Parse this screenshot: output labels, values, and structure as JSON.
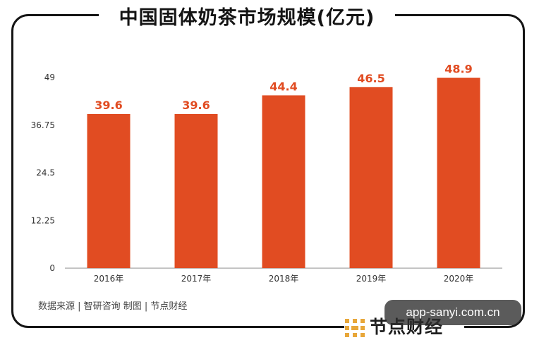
{
  "chart_data": {
    "type": "bar",
    "title": "中国固体奶茶市场规模(亿元)",
    "categories": [
      "2016年",
      "2017年",
      "2018年",
      "2019年",
      "2020年"
    ],
    "values": [
      39.6,
      39.6,
      44.4,
      46.5,
      48.9
    ],
    "ylim": [
      0,
      49
    ],
    "yticks": [
      0,
      12.25,
      24.5,
      36.75,
      49
    ],
    "bar_color": "#e14c22",
    "label_color": "#e14c22",
    "grid": false,
    "legend": "none"
  },
  "source": "数据来源 | 智研咨询    制图 | 节点财经",
  "watermark": "app-sanyi.com.cn",
  "brand": {
    "text": "节点财经",
    "color": "#e8a73a"
  }
}
